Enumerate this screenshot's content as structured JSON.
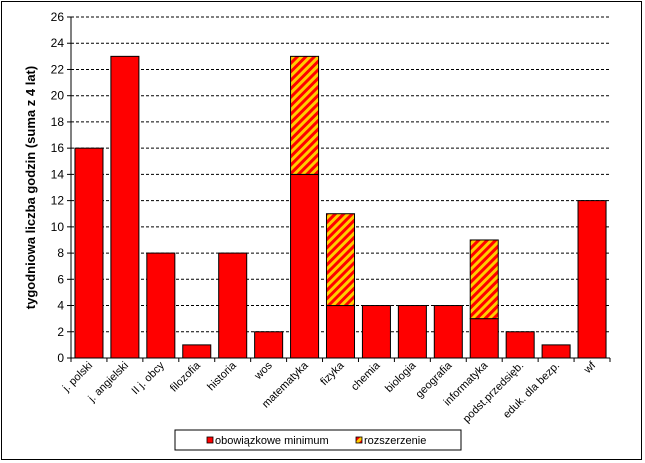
{
  "chart_data": {
    "type": "bar",
    "stacked": true,
    "categories": [
      "j. polski",
      "j. angielski",
      "II j. obcy",
      "filozofia",
      "historia",
      "wos",
      "matematyka",
      "fizyka",
      "chemia",
      "biologia",
      "geografia",
      "informatyka",
      "podst.przedsięb.",
      "eduk. dla bezp.",
      "wf"
    ],
    "series": [
      {
        "name": "obowiązkowe minimum",
        "values": [
          16,
          23,
          8,
          1,
          8,
          2,
          14,
          4,
          4,
          4,
          4,
          3,
          2,
          1,
          12
        ],
        "color": "#ff0000"
      },
      {
        "name": "rozszerzenie",
        "values": [
          0,
          0,
          0,
          0,
          0,
          0,
          9,
          7,
          0,
          0,
          0,
          6,
          0,
          0,
          0
        ],
        "color": "#ff0000",
        "hatch_color": "#ffcc00"
      }
    ],
    "title": "",
    "xlabel": "",
    "ylabel": "tygodniowa liczba godzin (suma z 4 lat)",
    "ylim": [
      0,
      26
    ],
    "yticks": [
      0,
      2,
      4,
      6,
      8,
      10,
      12,
      14,
      16,
      18,
      20,
      22,
      24,
      26
    ],
    "grid": "horizontal dashed",
    "legend_position": "bottom"
  }
}
